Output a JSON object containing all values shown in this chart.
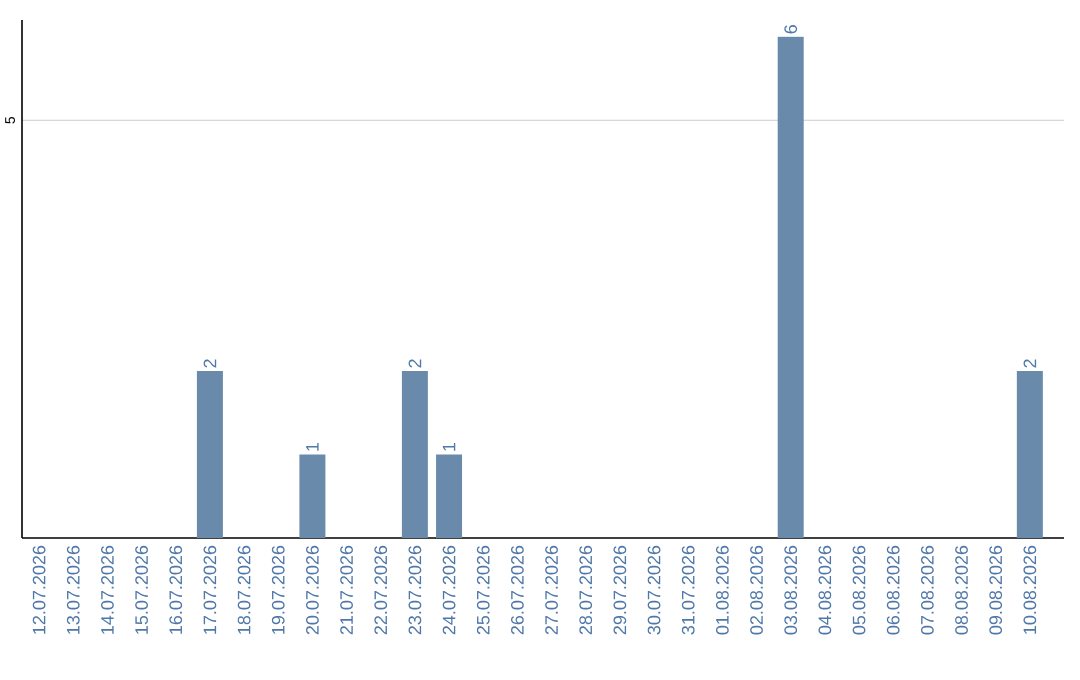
{
  "chart_data": {
    "type": "bar",
    "categories": [
      "12.07.2026",
      "13.07.2026",
      "14.07.2026",
      "15.07.2026",
      "16.07.2026",
      "17.07.2026",
      "18.07.2026",
      "19.07.2026",
      "20.07.2026",
      "21.07.2026",
      "22.07.2026",
      "23.07.2026",
      "24.07.2026",
      "25.07.2026",
      "26.07.2026",
      "27.07.2026",
      "28.07.2026",
      "29.07.2026",
      "30.07.2026",
      "31.07.2026",
      "01.08.2026",
      "02.08.2026",
      "03.08.2026",
      "04.08.2026",
      "05.08.2026",
      "06.08.2026",
      "07.08.2026",
      "08.08.2026",
      "09.08.2026",
      "10.08.2026"
    ],
    "values": [
      0,
      0,
      0,
      0,
      0,
      2,
      0,
      0,
      1,
      0,
      0,
      2,
      1,
      0,
      0,
      0,
      0,
      0,
      0,
      0,
      0,
      0,
      6,
      0,
      0,
      0,
      0,
      0,
      0,
      2
    ],
    "value_labels": [
      null,
      null,
      null,
      null,
      null,
      "2",
      null,
      null,
      "1",
      null,
      null,
      "2",
      "1",
      null,
      null,
      null,
      null,
      null,
      null,
      null,
      null,
      null,
      "6",
      null,
      null,
      null,
      null,
      null,
      null,
      "2"
    ],
    "color": "#6a8aab",
    "ylim": [
      0,
      6.2
    ],
    "yticks": [
      5
    ],
    "grid": "y"
  }
}
